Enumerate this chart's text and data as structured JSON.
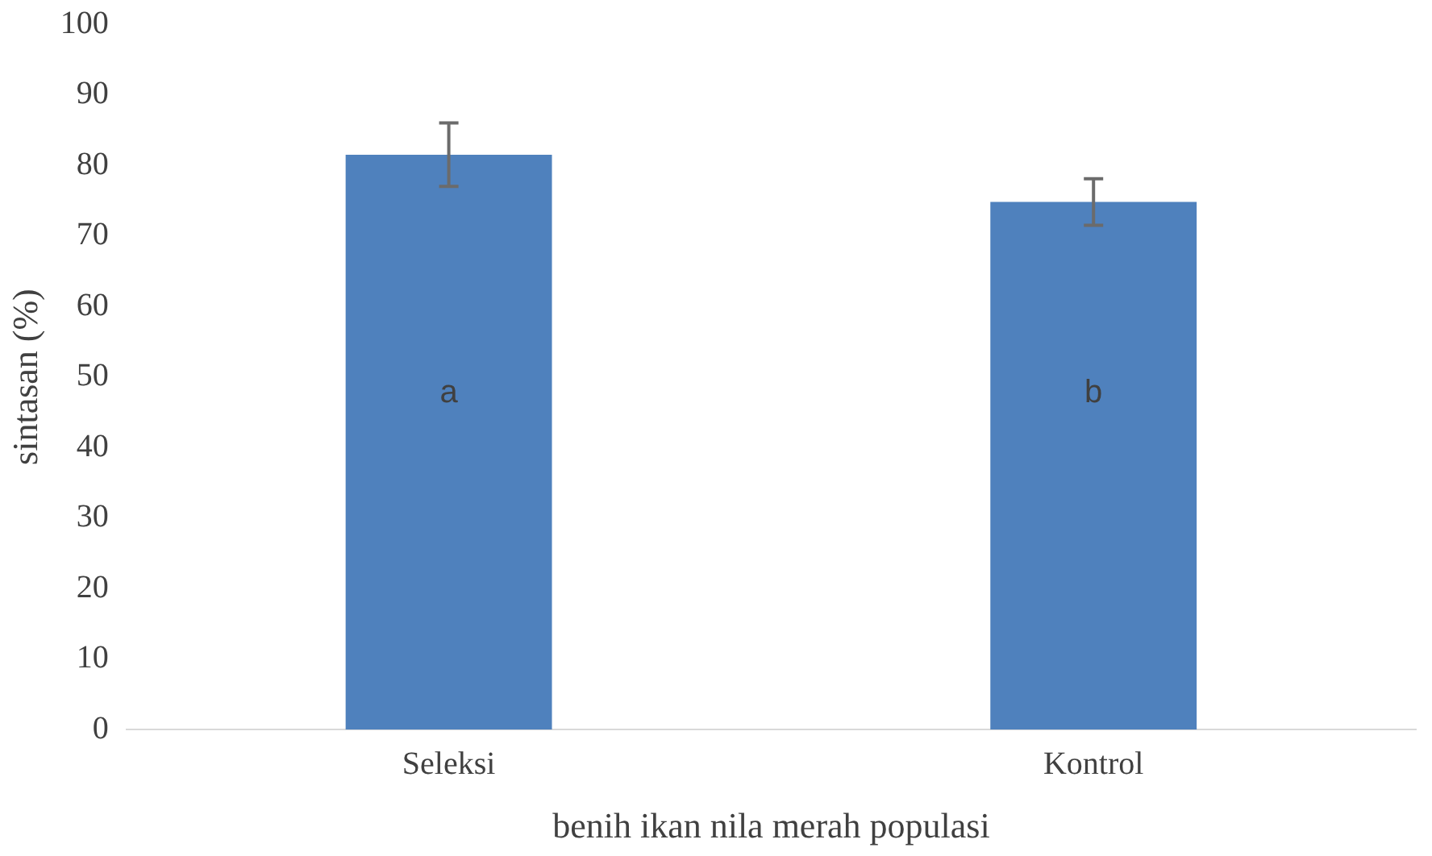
{
  "chart_data": {
    "type": "bar",
    "xlabel": "benih ikan nila merah populasi",
    "ylabel": "sintasan (%)",
    "categories": [
      "Seleksi",
      "Kontrol"
    ],
    "values": [
      81.5,
      74.8
    ],
    "errors": [
      4.5,
      3.3
    ],
    "color": "#4f81bd",
    "ylim": [
      0,
      100
    ],
    "yticks": [
      0,
      10,
      20,
      30,
      40,
      50,
      60,
      70,
      80,
      90,
      100
    ],
    "annotations": [
      "a",
      "b"
    ],
    "grid": false,
    "legend": false
  }
}
